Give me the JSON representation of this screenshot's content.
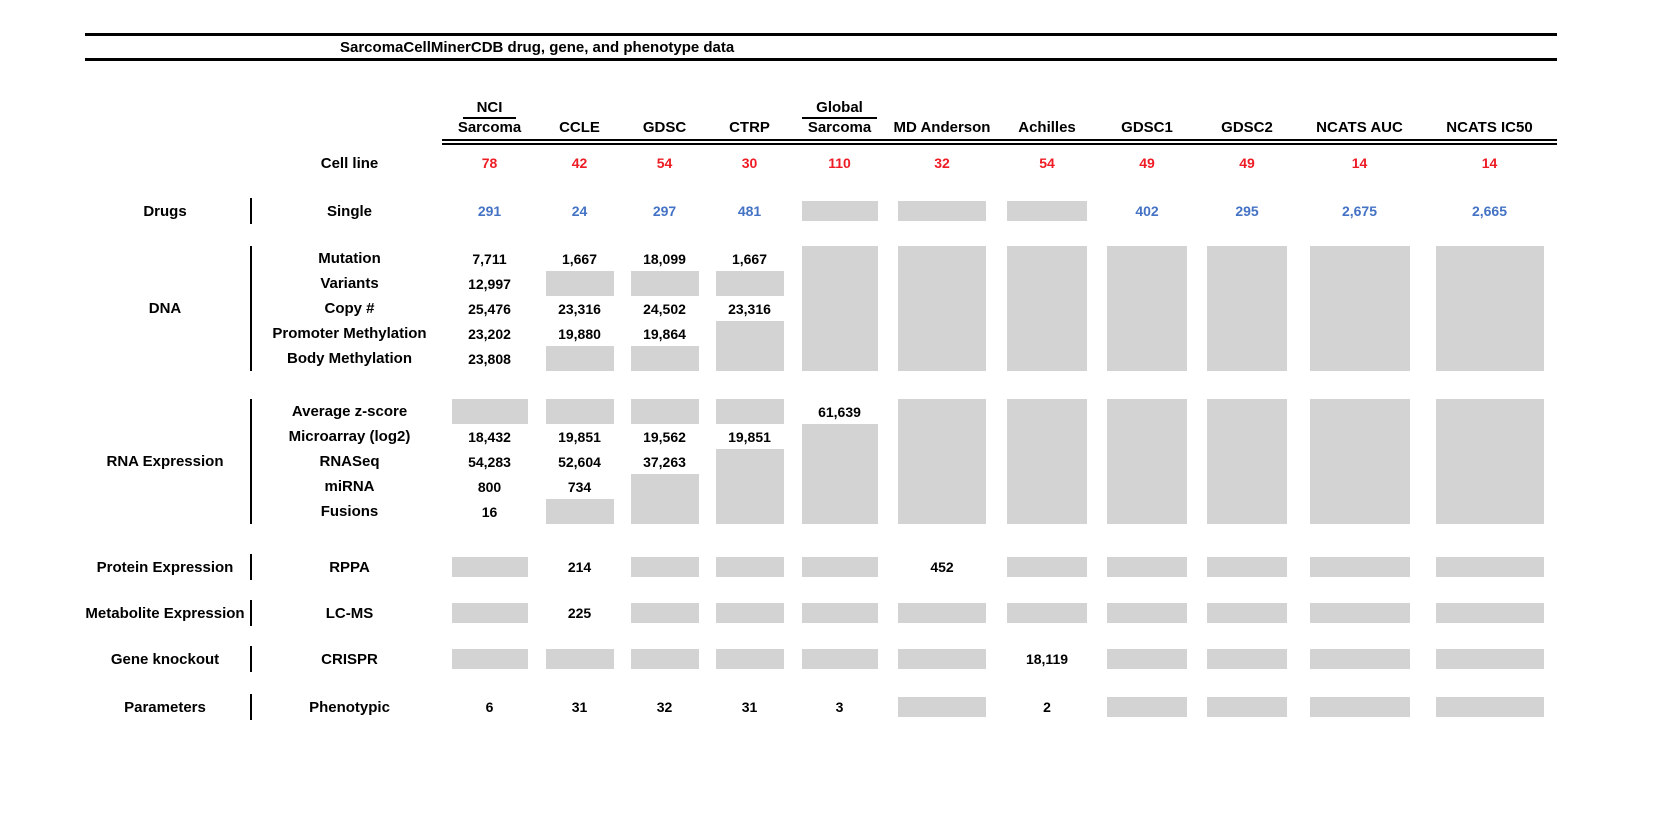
{
  "chart_data": {
    "type": "table",
    "title": "SarcomaCellMinerCDB drug, gene, and phenotype data",
    "missing_data_marker": "gray box = not available",
    "colors": {
      "cell_line_counts": "#ee1c25",
      "drug_counts": "#4472c4",
      "missing_block": "#d3d3d3",
      "text": "#000000"
    },
    "columns": [
      {
        "top": "NCI",
        "label": "Sarcoma"
      },
      {
        "label": "CCLE"
      },
      {
        "label": "GDSC"
      },
      {
        "label": "CTRP"
      },
      {
        "top": "Global",
        "label": "Sarcoma"
      },
      {
        "label": "MD Anderson"
      },
      {
        "label": "Achilles"
      },
      {
        "label": "GDSC1"
      },
      {
        "label": "GDSC2"
      },
      {
        "label": "NCATS AUC"
      },
      {
        "label": "NCATS IC50"
      }
    ],
    "cell_line_row": {
      "label": "Cell line",
      "values": [
        "78",
        "42",
        "54",
        "30",
        "110",
        "32",
        "54",
        "49",
        "49",
        "14",
        "14"
      ]
    },
    "sections": [
      {
        "category": "Drugs",
        "value_color": "blue",
        "rows": [
          {
            "label": "Single",
            "cells": [
              "291",
              "24",
              "297",
              "481",
              null,
              null,
              null,
              "402",
              "295",
              "2,675",
              "2,665"
            ]
          }
        ]
      },
      {
        "category": "DNA",
        "rows": [
          {
            "label": "Mutation",
            "cells": [
              "7,711",
              "1,667",
              "18,099",
              "1,667",
              null,
              null,
              null,
              null,
              null,
              null,
              null
            ]
          },
          {
            "label": "Variants",
            "cells": [
              "12,997",
              null,
              null,
              null,
              null,
              null,
              null,
              null,
              null,
              null,
              null
            ]
          },
          {
            "label": "Copy #",
            "cells": [
              "25,476",
              "23,316",
              "24,502",
              "23,316",
              null,
              null,
              null,
              null,
              null,
              null,
              null
            ]
          },
          {
            "label": "Promoter Methylation",
            "cells": [
              "23,202",
              "19,880",
              "19,864",
              null,
              null,
              null,
              null,
              null,
              null,
              null,
              null
            ]
          },
          {
            "label": "Body Methylation",
            "cells": [
              "23,808",
              null,
              null,
              null,
              null,
              null,
              null,
              null,
              null,
              null,
              null
            ]
          }
        ]
      },
      {
        "category": "RNA Expression",
        "rows": [
          {
            "label": "Average z-score",
            "cells": [
              null,
              null,
              null,
              null,
              "61,639",
              null,
              null,
              null,
              null,
              null,
              null
            ]
          },
          {
            "label": "Microarray (log2)",
            "cells": [
              "18,432",
              "19,851",
              "19,562",
              "19,851",
              null,
              null,
              null,
              null,
              null,
              null,
              null
            ]
          },
          {
            "label": "RNASeq",
            "cells": [
              "54,283",
              "52,604",
              "37,263",
              null,
              null,
              null,
              null,
              null,
              null,
              null,
              null
            ]
          },
          {
            "label": "miRNA",
            "cells": [
              "800",
              "734",
              null,
              null,
              null,
              null,
              null,
              null,
              null,
              null,
              null
            ]
          },
          {
            "label": "Fusions",
            "cells": [
              "16",
              null,
              null,
              null,
              null,
              null,
              null,
              null,
              null,
              null,
              null
            ]
          }
        ]
      },
      {
        "category": "Protein Expression",
        "rows": [
          {
            "label": "RPPA",
            "cells": [
              null,
              "214",
              null,
              null,
              null,
              "452",
              null,
              null,
              null,
              null,
              null
            ]
          }
        ]
      },
      {
        "category": "Metabolite Expression",
        "rows": [
          {
            "label": "LC-MS",
            "cells": [
              null,
              "225",
              null,
              null,
              null,
              null,
              null,
              null,
              null,
              null,
              null
            ]
          }
        ]
      },
      {
        "category": "Gene knockout",
        "rows": [
          {
            "label": "CRISPR",
            "cells": [
              null,
              null,
              null,
              null,
              null,
              null,
              "18,119",
              null,
              null,
              null,
              null
            ]
          }
        ]
      },
      {
        "category": "Parameters",
        "rows": [
          {
            "label": "Phenotypic",
            "cells": [
              "6",
              "31",
              "32",
              "31",
              "3",
              null,
              "2",
              null,
              null,
              null,
              null
            ]
          }
        ]
      }
    ]
  }
}
